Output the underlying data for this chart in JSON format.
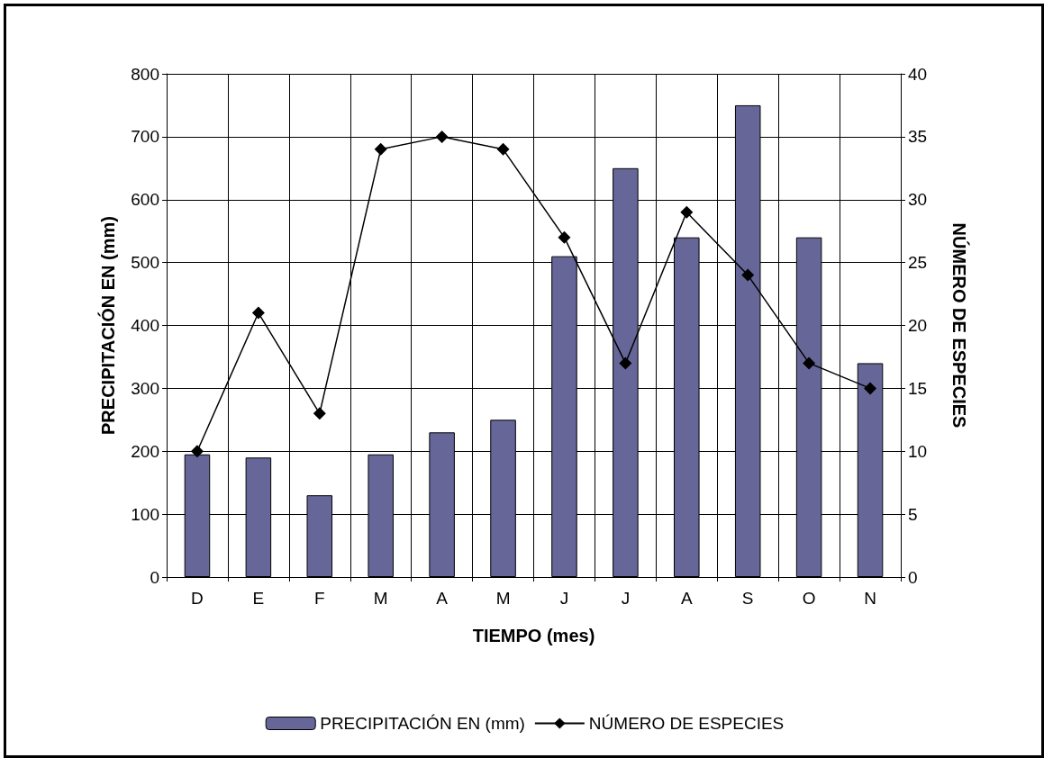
{
  "chart_data": {
    "type": "bar",
    "xlabel": "TIEMPO (mes)",
    "ylabel": "PRECIPITACIÓN EN (mm)",
    "y2label": "NÚMERO DE ESPECIES",
    "categories": [
      "D",
      "E",
      "F",
      "M",
      "A",
      "M",
      "J",
      "J",
      "A",
      "S",
      "O",
      "N"
    ],
    "series": [
      {
        "name": "PRECIPITACIÓN EN (mm)",
        "color": "#666699",
        "values": [
          195,
          190,
          130,
          195,
          230,
          250,
          510,
          650,
          540,
          750,
          540,
          340
        ]
      },
      {
        "name": "NÚMERO DE ESPECIES",
        "type": "line",
        "axis": "y2",
        "color": "#000000",
        "marker": "diamond",
        "line_style": "solid",
        "values": [
          10,
          21,
          13,
          34,
          35,
          34,
          27,
          17,
          29,
          24,
          17,
          15
        ]
      }
    ],
    "ylim": [
      0,
      800
    ],
    "yticks": [
      0,
      100,
      200,
      300,
      400,
      500,
      600,
      700,
      800
    ],
    "y2lim": [
      0,
      40
    ],
    "y2ticks": [
      0,
      5,
      10,
      15,
      20,
      25,
      30,
      35,
      40
    ],
    "grid": true,
    "legend": "bottom"
  }
}
